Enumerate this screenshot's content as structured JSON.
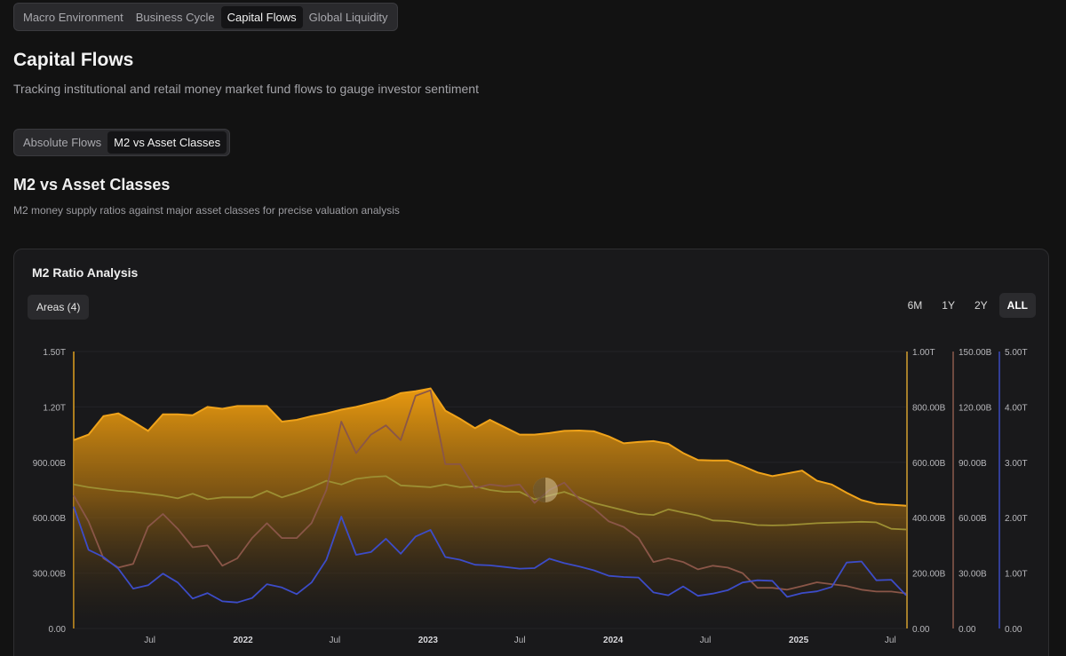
{
  "nav": {
    "tabs": [
      "Macro Environment",
      "Business Cycle",
      "Capital Flows",
      "Global Liquidity"
    ],
    "active": "Capital Flows"
  },
  "page": {
    "title": "Capital Flows",
    "subtitle": "Tracking institutional and retail money market fund flows to gauge investor sentiment"
  },
  "subnav": {
    "tabs": [
      "Absolute Flows",
      "M2 vs Asset Classes"
    ],
    "active": "M2 vs Asset Classes"
  },
  "section": {
    "title": "M2 vs Asset Classes",
    "subtitle": "M2 money supply ratios against major asset classes for precise valuation analysis"
  },
  "card": {
    "title": "M2 Ratio Analysis",
    "areas_label": "Areas (4)",
    "ranges": [
      "6M",
      "1Y",
      "2Y",
      "ALL"
    ],
    "active_range": "ALL"
  },
  "chart_data": {
    "type": "area",
    "x_start": "2021-02-01",
    "x_end": "2025-08-01",
    "x_ticks": [
      {
        "label": "Jul",
        "date": "2021-07-01",
        "bold": false
      },
      {
        "label": "2022",
        "date": "2022-01-01",
        "bold": true
      },
      {
        "label": "Jul",
        "date": "2022-07-01",
        "bold": false
      },
      {
        "label": "2023",
        "date": "2023-01-01",
        "bold": true
      },
      {
        "label": "Jul",
        "date": "2023-07-01",
        "bold": false
      },
      {
        "label": "2024",
        "date": "2024-01-01",
        "bold": true
      },
      {
        "label": "Jul",
        "date": "2024-07-01",
        "bold": false
      },
      {
        "label": "2025",
        "date": "2025-01-01",
        "bold": true
      },
      {
        "label": "Jul",
        "date": "2025-07-01",
        "bold": false
      }
    ],
    "axes": [
      {
        "id": "left",
        "position": "left",
        "color": "#e0a020",
        "ticks": [
          "0.00",
          "300.00B",
          "600.00B",
          "900.00B",
          "1.20T",
          "1.50T"
        ],
        "range": [
          0,
          1500000000000
        ]
      },
      {
        "id": "right1",
        "position": "right",
        "color": "#d4a030",
        "ticks": [
          "0.00",
          "200.00B",
          "400.00B",
          "600.00B",
          "800.00B",
          "1.00T"
        ],
        "range": [
          0,
          1000000000000
        ]
      },
      {
        "id": "right2",
        "position": "right",
        "color": "#8a5a4c",
        "ticks": [
          "0.00",
          "30.00B",
          "60.00B",
          "90.00B",
          "120.00B",
          "150.00B"
        ],
        "range": [
          0,
          150000000000
        ]
      },
      {
        "id": "right3",
        "position": "right",
        "color": "#3a4ac0",
        "ticks": [
          "0.00",
          "1.00T",
          "2.00T",
          "3.00T",
          "4.00T",
          "5.00T"
        ],
        "range": [
          0,
          5000000000000
        ]
      }
    ],
    "series": [
      {
        "axis": "left",
        "kind": "area",
        "color": "#e8990f",
        "values": [
          1.02,
          1.05,
          1.15,
          1.165,
          1.12,
          1.07,
          1.16,
          1.16,
          1.155,
          1.2,
          1.19,
          1.205,
          1.205,
          1.205,
          1.12,
          1.13,
          1.15,
          1.165,
          1.185,
          1.2,
          1.22,
          1.24,
          1.275,
          1.285,
          1.3,
          1.18,
          1.135,
          1.085,
          1.13,
          1.09,
          1.05,
          1.05,
          1.058,
          1.07,
          1.072,
          1.068,
          1.04,
          1.003,
          1.01,
          1.015,
          1.0,
          0.95,
          0.912,
          0.91,
          0.91,
          0.88,
          0.845,
          0.825,
          0.84,
          0.855,
          0.8,
          0.78,
          0.735,
          0.695,
          0.675,
          0.67,
          0.665
        ]
      },
      {
        "axis": "left",
        "kind": "line",
        "color": "#9c8f33",
        "values": [
          0.78,
          0.765,
          0.755,
          0.745,
          0.74,
          0.73,
          0.72,
          0.705,
          0.73,
          0.7,
          0.71,
          0.71,
          0.71,
          0.745,
          0.71,
          0.735,
          0.765,
          0.8,
          0.78,
          0.81,
          0.82,
          0.825,
          0.775,
          0.77,
          0.765,
          0.78,
          0.765,
          0.77,
          0.75,
          0.74,
          0.74,
          0.7,
          0.72,
          0.74,
          0.71,
          0.68,
          0.66,
          0.64,
          0.62,
          0.615,
          0.645,
          0.628,
          0.612,
          0.585,
          0.582,
          0.572,
          0.56,
          0.558,
          0.56,
          0.565,
          0.57,
          0.573,
          0.575,
          0.578,
          0.575,
          0.54,
          0.536
        ]
      },
      {
        "axis": "right2",
        "kind": "line",
        "color": "#8a5648",
        "values": [
          72,
          58,
          38,
          33,
          35,
          55,
          62,
          54,
          44,
          45,
          34,
          38,
          49,
          57,
          49,
          49,
          57,
          75,
          112,
          95,
          105,
          110,
          102,
          126,
          129,
          89,
          89,
          76,
          78,
          77,
          78,
          68,
          75,
          79,
          70,
          65,
          58,
          55,
          49,
          36,
          38,
          36,
          32,
          34,
          33,
          30,
          22,
          22,
          21,
          23,
          25,
          24,
          23,
          21,
          20,
          20,
          19
        ]
      },
      {
        "axis": "right3",
        "kind": "line",
        "color": "#3c4cc8",
        "values": [
          2.2,
          1.42,
          1.29,
          1.08,
          0.72,
          0.78,
          0.99,
          0.83,
          0.54,
          0.64,
          0.49,
          0.47,
          0.55,
          0.8,
          0.74,
          0.62,
          0.83,
          1.24,
          2.02,
          1.33,
          1.38,
          1.62,
          1.35,
          1.66,
          1.78,
          1.29,
          1.24,
          1.15,
          1.14,
          1.11,
          1.08,
          1.09,
          1.26,
          1.18,
          1.12,
          1.05,
          0.95,
          0.93,
          0.92,
          0.65,
          0.6,
          0.76,
          0.59,
          0.63,
          0.69,
          0.83,
          0.87,
          0.86,
          0.57,
          0.64,
          0.67,
          0.75,
          1.19,
          1.21,
          0.87,
          0.88,
          0.6
        ]
      }
    ]
  }
}
